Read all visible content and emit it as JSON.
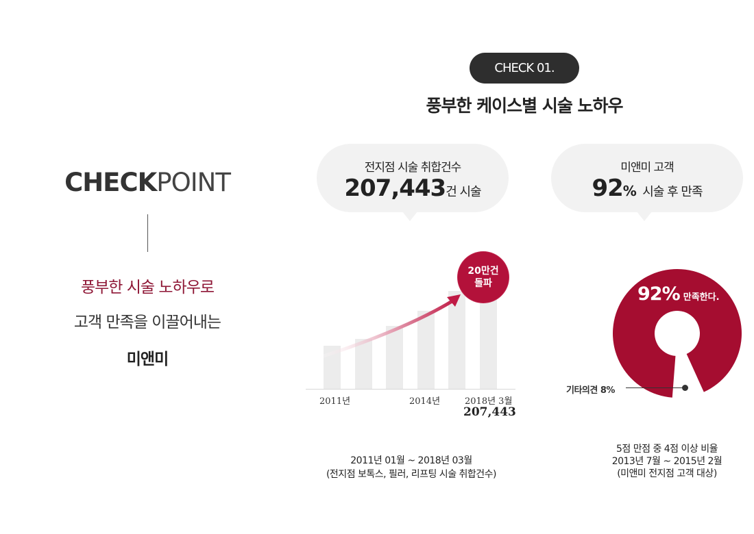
{
  "left_panel": {
    "title_bold": "CHECK",
    "title_light": "POINT",
    "line1": "풍부한 시술 노하우로",
    "line2": "고객 만족을 이끌어내는",
    "line3": "미앤미"
  },
  "header": {
    "pill": "CHECK 01.",
    "title": "풍부한 케이스별 시술 노하우"
  },
  "stat_cases": {
    "label": "전지점 시술 취합건수",
    "number": "207,443",
    "suffix": "건 시술"
  },
  "stat_satisfaction": {
    "label": "미앤미 고객",
    "number": "92",
    "unit": "%",
    "suffix": "시술 후 만족"
  },
  "badge": {
    "line1": "20만건",
    "line2": "돌파"
  },
  "chart_data": {
    "type": "bar",
    "x_tick_labels": [
      "2011년",
      "2014년",
      "2018년 3월"
    ],
    "final_value_label": "207,443",
    "relative_heights": [
      0.32,
      0.37,
      0.47,
      0.58,
      0.73,
      1.0
    ],
    "bar_color": "#ececec",
    "trend_arrow_color": "#c01a45"
  },
  "chart_note": {
    "line1": "2011년 01월 ~ 2018년 03월",
    "line2": "(전지점 보톡스, 필러, 리프팅 시술 취합건수)"
  },
  "donut": {
    "value_pct": 92,
    "other_pct": 8,
    "percent_label": "92%",
    "text_label": "만족한다.",
    "other_label": "기타의견 8%",
    "color": "#a50d30"
  },
  "donut_note": {
    "line1": "5점 만점 중 4점 이상 비율",
    "line2": "2013년 7월 ~ 2015년 2월",
    "line3": "(미앤미 전지점 고객 대상)"
  }
}
